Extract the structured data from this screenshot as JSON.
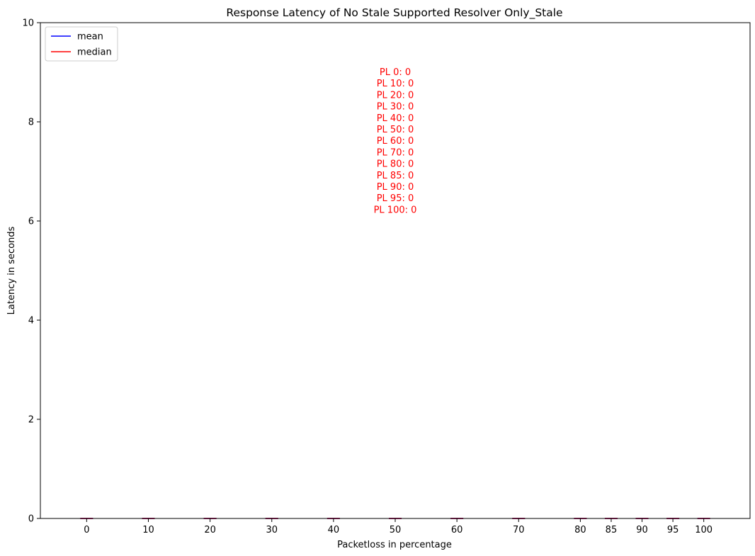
{
  "chart_data": {
    "type": "box",
    "title": "Response Latency of No Stale Supported Resolver Only_Stale",
    "xlabel": "Packetloss in percentage",
    "ylabel": "Latency in seconds",
    "ylim": [
      0,
      10
    ],
    "y_ticks": [
      0,
      2,
      4,
      6,
      8,
      10
    ],
    "categories": [
      "0",
      "10",
      "20",
      "30",
      "40",
      "50",
      "60",
      "70",
      "80",
      "85",
      "90",
      "95",
      "100"
    ],
    "x_positions": [
      0,
      10,
      20,
      30,
      40,
      50,
      60,
      70,
      80,
      85,
      90,
      95,
      100
    ],
    "xlim": [
      -7.5,
      107.5
    ],
    "series": [
      {
        "name": "mean",
        "color": "#0000ff",
        "values": [
          0,
          0,
          0,
          0,
          0,
          0,
          0,
          0,
          0,
          0,
          0,
          0,
          0
        ]
      },
      {
        "name": "median",
        "color": "#ff0000",
        "values": [
          0,
          0,
          0,
          0,
          0,
          0,
          0,
          0,
          0,
          0,
          0,
          0,
          0
        ]
      }
    ],
    "legend": {
      "placement": "top-left"
    },
    "grid": false,
    "annotation": {
      "color": "#ff0000",
      "lines": [
        "PL 0: 0",
        "PL 10: 0",
        "PL 20: 0",
        "PL 30: 0",
        "PL 40: 0",
        "PL 50: 0",
        "PL 60: 0",
        "PL 70: 0",
        "PL 80: 0",
        "PL 85: 0",
        "PL 90: 0",
        "PL 95: 0",
        "PL 100: 0"
      ]
    }
  }
}
